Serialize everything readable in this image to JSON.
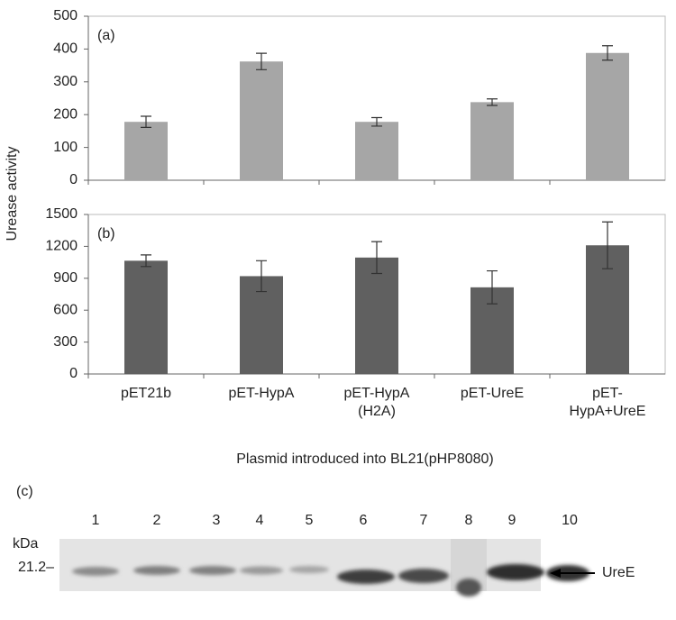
{
  "chart_data": [
    {
      "type": "bar",
      "label": "(a)",
      "ylabel": "Urease activity",
      "values": [
        178,
        362,
        178,
        238,
        388
      ],
      "errors": [
        17,
        25,
        13,
        10,
        22
      ],
      "color": "#a6a6a6",
      "ylim": [
        0,
        500
      ],
      "yticks": [
        0,
        100,
        200,
        300,
        400,
        500
      ]
    },
    {
      "type": "bar",
      "label": "(b)",
      "xlabel": "Plasmid introduced into BL21(pHP8080)",
      "categories": [
        "pET21b",
        "pET-HypA",
        "pET-HypA\n(H2A)",
        "pET-UreE",
        "pET-\nHypA+UreE"
      ],
      "values": [
        1065,
        920,
        1095,
        815,
        1210
      ],
      "errors": [
        55,
        145,
        150,
        155,
        220
      ],
      "color": "#606060",
      "ylim": [
        0,
        1500
      ],
      "yticks": [
        0,
        300,
        600,
        900,
        1200,
        1500
      ]
    }
  ],
  "gel": {
    "label": "(c)",
    "lanes": [
      "1",
      "2",
      "3",
      "4",
      "5",
      "6",
      "7",
      "8",
      "9",
      "10"
    ],
    "unit": "kDa",
    "marker": "21.2–",
    "band": "UreE"
  }
}
